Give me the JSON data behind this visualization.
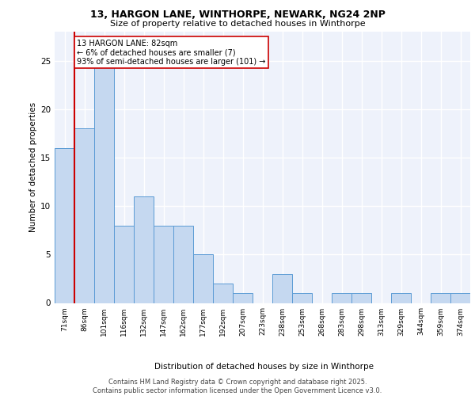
{
  "title_line1": "13, HARGON LANE, WINTHORPE, NEWARK, NG24 2NP",
  "title_line2": "Size of property relative to detached houses in Winthorpe",
  "xlabel": "Distribution of detached houses by size in Winthorpe",
  "ylabel": "Number of detached properties",
  "categories": [
    "71sqm",
    "86sqm",
    "101sqm",
    "116sqm",
    "132sqm",
    "147sqm",
    "162sqm",
    "177sqm",
    "192sqm",
    "207sqm",
    "223sqm",
    "238sqm",
    "253sqm",
    "268sqm",
    "283sqm",
    "298sqm",
    "313sqm",
    "329sqm",
    "344sqm",
    "359sqm",
    "374sqm"
  ],
  "values": [
    16,
    18,
    25,
    8,
    11,
    8,
    8,
    5,
    2,
    1,
    0,
    3,
    1,
    0,
    1,
    1,
    0,
    1,
    0,
    1,
    1
  ],
  "bar_color": "#c5d8f0",
  "bar_edge_color": "#5b9bd5",
  "vline_color": "#cc0000",
  "annotation_text": "13 HARGON LANE: 82sqm\n← 6% of detached houses are smaller (7)\n93% of semi-detached houses are larger (101) →",
  "annotation_box_color": "#ffffff",
  "annotation_box_edge": "#cc0000",
  "bg_color": "#eef2fb",
  "grid_color": "#ffffff",
  "footer_line1": "Contains HM Land Registry data © Crown copyright and database right 2025.",
  "footer_line2": "Contains public sector information licensed under the Open Government Licence v3.0.",
  "ylim": [
    0,
    28
  ],
  "yticks": [
    0,
    5,
    10,
    15,
    20,
    25
  ]
}
